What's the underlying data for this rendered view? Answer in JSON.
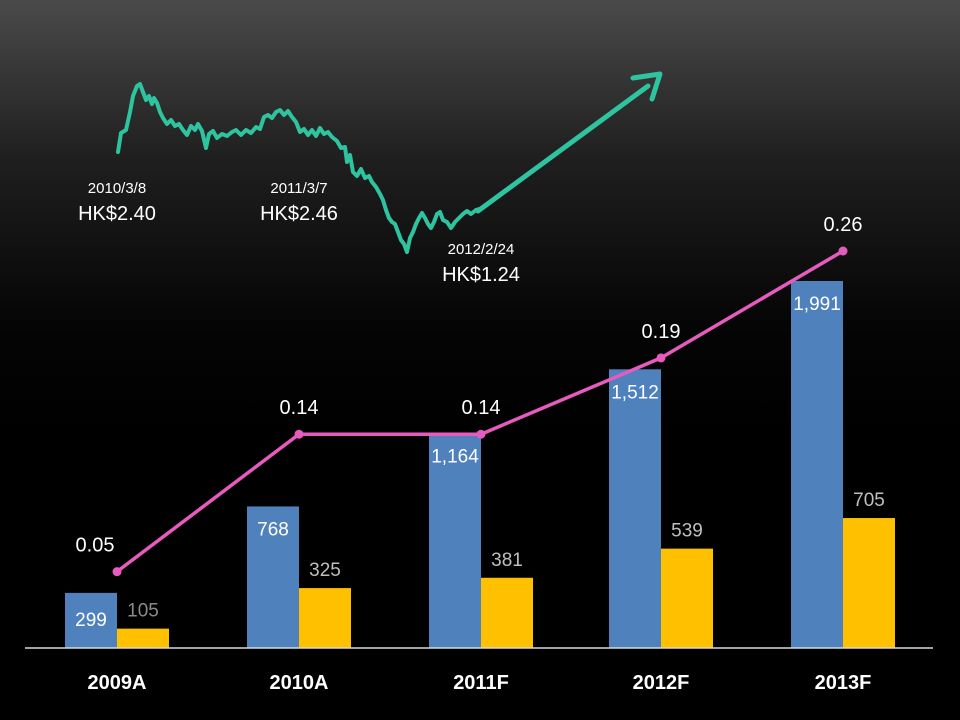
{
  "chart_data": {
    "type": "bar",
    "categories": [
      "2009A",
      "2010A",
      "2011F",
      "2012F",
      "2013F"
    ],
    "series": [
      {
        "type": "bar",
        "color": "#4f81bd",
        "values": [
          299,
          768,
          1164,
          1512,
          1991
        ],
        "labels": [
          "299",
          "768",
          "1,164",
          "1,512",
          "1,991"
        ]
      },
      {
        "type": "bar",
        "color": "#ffc000",
        "values": [
          105,
          325,
          381,
          539,
          705
        ],
        "labels": [
          "105",
          "325",
          "381",
          "539",
          "705"
        ]
      },
      {
        "type": "line",
        "color": "#e75bbf",
        "values": [
          0.05,
          0.14,
          0.14,
          0.19,
          0.26
        ],
        "labels": [
          "0.05",
          "0.14",
          "0.14",
          "0.19",
          "0.26"
        ]
      }
    ],
    "bar_ylim": [
      0,
      2200
    ],
    "line_ylim": [
      0,
      0.38
    ]
  },
  "stock_inset": {
    "line_color": "#2ec4a0",
    "annotations": [
      {
        "date": "2010/3/8",
        "price": "HK$2.40"
      },
      {
        "date": "2011/3/7",
        "price": "HK$2.46"
      },
      {
        "date": "2012/2/24",
        "price": "HK$1.24"
      }
    ]
  }
}
